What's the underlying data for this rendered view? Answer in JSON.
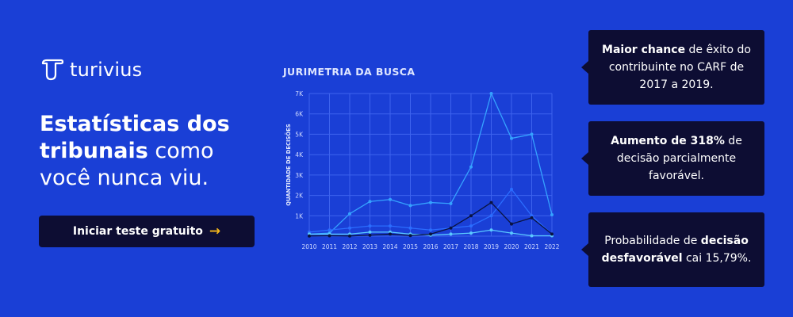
{
  "brand": {
    "name": "turivius"
  },
  "headline": {
    "bold": "Estatísticas dos tribunais",
    "rest": "como você nunca viu."
  },
  "cta": {
    "label": "Iniciar teste gratuito",
    "icon": "arrow-right-icon"
  },
  "chart_data": {
    "type": "line",
    "title": "JURIMETRIA DA BUSCA",
    "xlabel": "",
    "ylabel": "QUANTIDADE DE DECISÕES",
    "ylim": [
      0,
      7000
    ],
    "y_ticks": [
      "1K",
      "2K",
      "3K",
      "4K",
      "5K",
      "6K",
      "7K"
    ],
    "x": [
      "2010",
      "2011",
      "2012",
      "2013",
      "2014",
      "2015",
      "2016",
      "2017",
      "2018",
      "2019",
      "2020",
      "2021",
      "2022"
    ],
    "series": [
      {
        "color": "#35a2ff",
        "values": [
          100,
          150,
          1100,
          1700,
          1800,
          1500,
          1650,
          1600,
          3400,
          7000,
          4800,
          5000,
          1050
        ]
      },
      {
        "color": "#2b6dff",
        "values": [
          200,
          300,
          400,
          500,
          500,
          400,
          300,
          400,
          500,
          1000,
          2300,
          1000,
          100
        ]
      },
      {
        "color": "#5ac8ff",
        "values": [
          100,
          100,
          100,
          200,
          200,
          100,
          50,
          100,
          150,
          300,
          150,
          20,
          20
        ]
      },
      {
        "color": "#0a1340",
        "values": [
          10,
          20,
          10,
          50,
          100,
          30,
          100,
          400,
          1000,
          1650,
          600,
          900,
          100
        ]
      }
    ],
    "grid": true
  },
  "cards": [
    {
      "bold": "Maior chance",
      "text": " de êxito do contribuinte no CARF de 2017 a 2019."
    },
    {
      "bold": "Aumento de 318%",
      "text": " de decisão parcialmente favorável."
    },
    {
      "pre": "Probabilidade de ",
      "bold": "decisão desfavorável",
      "text": " cai 15,79%."
    }
  ],
  "colors": {
    "background": "#1a3fd6",
    "card": "#0d0d33",
    "accent": "#f5b81c"
  }
}
